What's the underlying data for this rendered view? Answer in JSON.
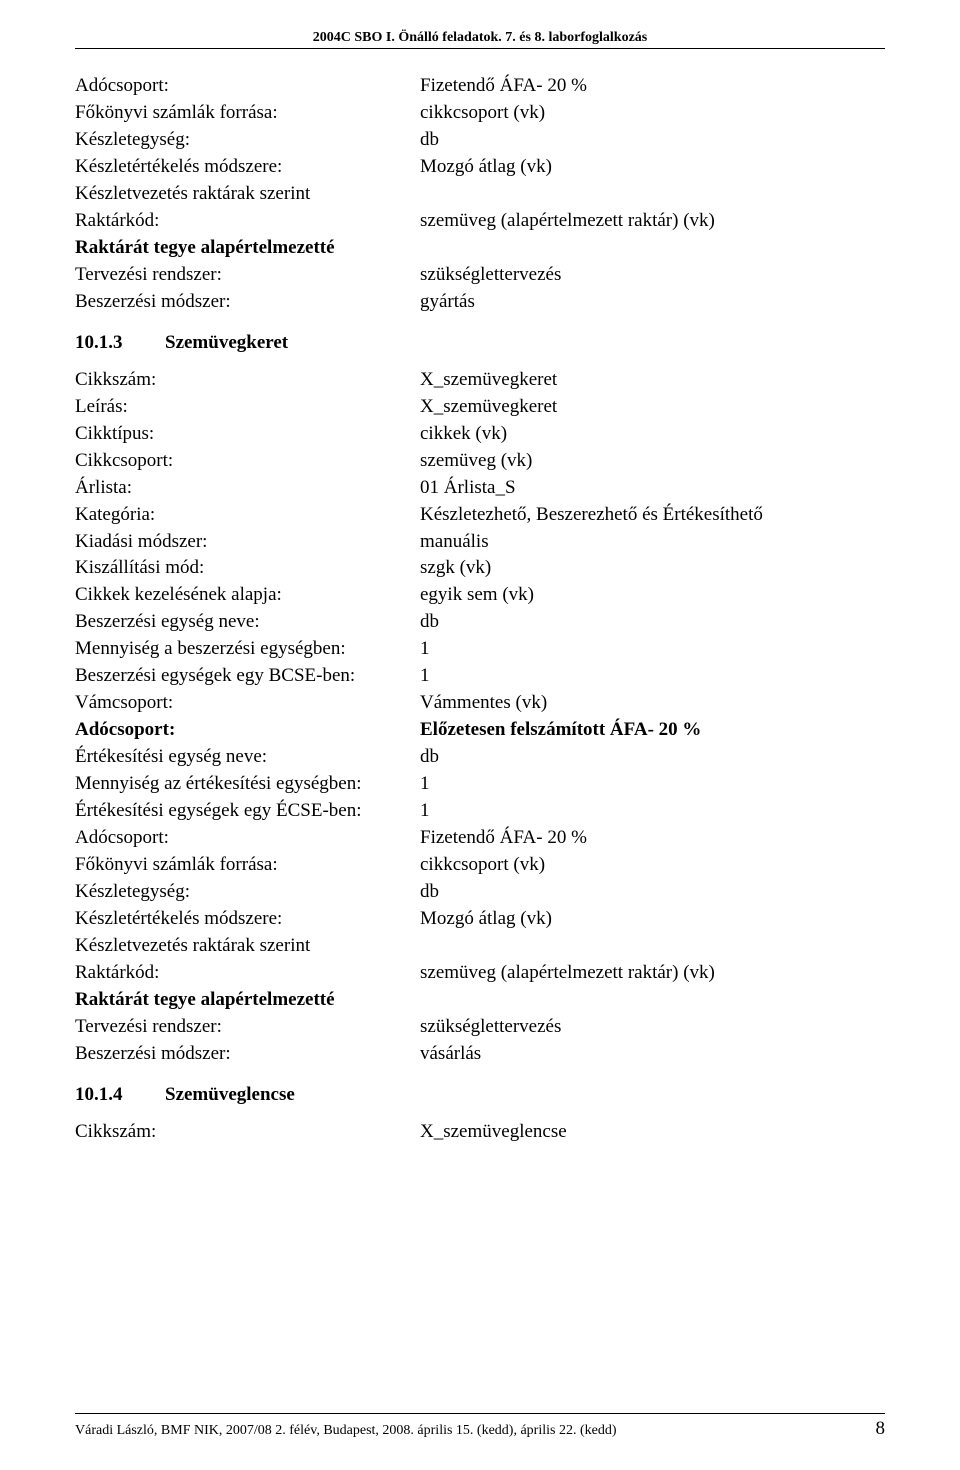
{
  "header": {
    "text": "2004C SBO I. Önálló feladatok. 7. és 8. laborfoglalkozás"
  },
  "block1": [
    {
      "label": "Adócsoport:",
      "value": "Fizetendő ÁFA- 20 %"
    },
    {
      "label": "Főkönyvi számlák forrása:",
      "value": "cikkcsoport (vk)"
    },
    {
      "label": "Készletegység:",
      "value": "db"
    },
    {
      "label": "Készletértékelés módszere:",
      "value": "Mozgó átlag (vk)"
    },
    {
      "label": "Készletvezetés raktárak szerint",
      "value": ""
    },
    {
      "label": "Raktárkód:",
      "value": "szemüveg (alapértelmezett raktár) (vk)"
    },
    {
      "label": "Raktárát tegye alapértelmezetté",
      "value": "",
      "bold": true
    },
    {
      "label": "Tervezési rendszer:",
      "value": "szükséglettervezés"
    },
    {
      "label": "Beszerzési módszer:",
      "value": "gyártás"
    }
  ],
  "section1": {
    "num": "10.1.3",
    "title": "Szemüvegkeret"
  },
  "block2": [
    {
      "label": "Cikkszám:",
      "value": "X_szemüvegkeret"
    },
    {
      "label": "Leírás:",
      "value": "X_szemüvegkeret"
    },
    {
      "label": "Cikktípus:",
      "value": "cikkek (vk)"
    },
    {
      "label": "Cikkcsoport:",
      "value": "szemüveg (vk)"
    },
    {
      "label": "Árlista:",
      "value": "01 Árlista_S"
    },
    {
      "label": "Kategória:",
      "value": "Készletezhető, Beszerezhető és Értékesíthető"
    },
    {
      "label": "Kiadási módszer:",
      "value": "manuális"
    },
    {
      "label": "Kiszállítási mód:",
      "value": "szgk (vk)"
    },
    {
      "label": "Cikkek kezelésének alapja:",
      "value": "egyik sem (vk)"
    },
    {
      "label": "Beszerzési egység neve:",
      "value": "db"
    },
    {
      "label": "Mennyiség a beszerzési egységben:",
      "value": "1"
    },
    {
      "label": "Beszerzési egységek egy BCSE-ben:",
      "value": "1"
    },
    {
      "label": "Vámcsoport:",
      "value": "Vámmentes (vk)"
    },
    {
      "label": "Adócsoport:",
      "value": "Előzetesen felszámított ÁFA- 20 %",
      "boldLabel": true,
      "boldValue": true
    },
    {
      "label": "Értékesítési egység neve:",
      "value": "db"
    },
    {
      "label": "Mennyiség az értékesítési egységben:",
      "value": "1"
    },
    {
      "label": "Értékesítési egységek egy ÉCSE-ben:",
      "value": "1"
    },
    {
      "label": "Adócsoport:",
      "value": "Fizetendő ÁFA- 20 %"
    },
    {
      "label": "Főkönyvi számlák forrása:",
      "value": "cikkcsoport (vk)"
    },
    {
      "label": "Készletegység:",
      "value": "db"
    },
    {
      "label": "Készletértékelés módszere:",
      "value": "Mozgó átlag (vk)"
    },
    {
      "label": "Készletvezetés raktárak szerint",
      "value": ""
    },
    {
      "label": "Raktárkód:",
      "value": "szemüveg (alapértelmezett raktár) (vk)"
    },
    {
      "label": "Raktárát tegye alapértelmezetté",
      "value": "",
      "bold": true
    },
    {
      "label": "Tervezési rendszer:",
      "value": "szükséglettervezés"
    },
    {
      "label": "Beszerzési módszer:",
      "value": "vásárlás"
    }
  ],
  "section2": {
    "num": "10.1.4",
    "title": "Szemüveglencse"
  },
  "block3": [
    {
      "label": "Cikkszám:",
      "value": "X_szemüveglencse"
    }
  ],
  "footer": {
    "text": "Váradi László, BMF NIK, 2007/08 2. félév, Budapest, 2008. április 15. (kedd), április 22. (kedd)",
    "page": "8"
  }
}
